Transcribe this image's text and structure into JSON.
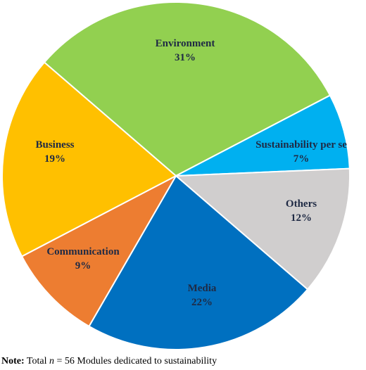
{
  "chart_data": {
    "type": "pie",
    "categories": [
      "Environment",
      "Sustainability per se",
      "Others",
      "Media",
      "Communication",
      "Business"
    ],
    "values": [
      31,
      7,
      12,
      22,
      9,
      19
    ],
    "value_labels": [
      "31%",
      "7%",
      "12%",
      "22%",
      "9%",
      "19%"
    ],
    "colors": [
      "#92d050",
      "#00b0f0",
      "#d0cece",
      "#0070c0",
      "#ed7d31",
      "#ffc000"
    ]
  },
  "note": {
    "label": "Note:",
    "parts": [
      "Total ",
      "n",
      " = 56 Modules dedicated to sustainability"
    ]
  }
}
